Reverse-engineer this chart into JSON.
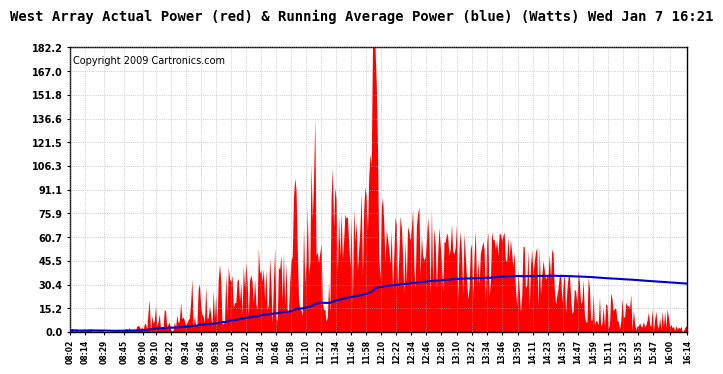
{
  "title": "West Array Actual Power (red) & Running Average Power (blue) (Watts) Wed Jan 7 16:21",
  "copyright": "Copyright 2009 Cartronics.com",
  "y_ticks": [
    0.0,
    15.2,
    30.4,
    45.5,
    60.7,
    75.9,
    91.1,
    106.3,
    121.5,
    136.6,
    151.8,
    167.0,
    182.2
  ],
  "y_max": 182.2,
  "bg_color": "#ffffff",
  "red_color": "#ff0000",
  "blue_color": "#0000cc",
  "grid_color": "#aaaaaa",
  "title_fontsize": 10,
  "copyright_fontsize": 7,
  "x_labels": [
    "08:02",
    "08:14",
    "08:29",
    "08:45",
    "09:00",
    "09:10",
    "09:22",
    "09:34",
    "09:46",
    "09:58",
    "10:10",
    "10:22",
    "10:34",
    "10:46",
    "10:58",
    "11:10",
    "11:22",
    "11:34",
    "11:46",
    "11:58",
    "12:10",
    "12:22",
    "12:34",
    "12:46",
    "12:58",
    "13:10",
    "13:22",
    "13:34",
    "13:46",
    "13:59",
    "14:11",
    "14:23",
    "14:35",
    "14:47",
    "14:59",
    "15:11",
    "15:23",
    "15:35",
    "15:47",
    "16:00",
    "16:14"
  ]
}
